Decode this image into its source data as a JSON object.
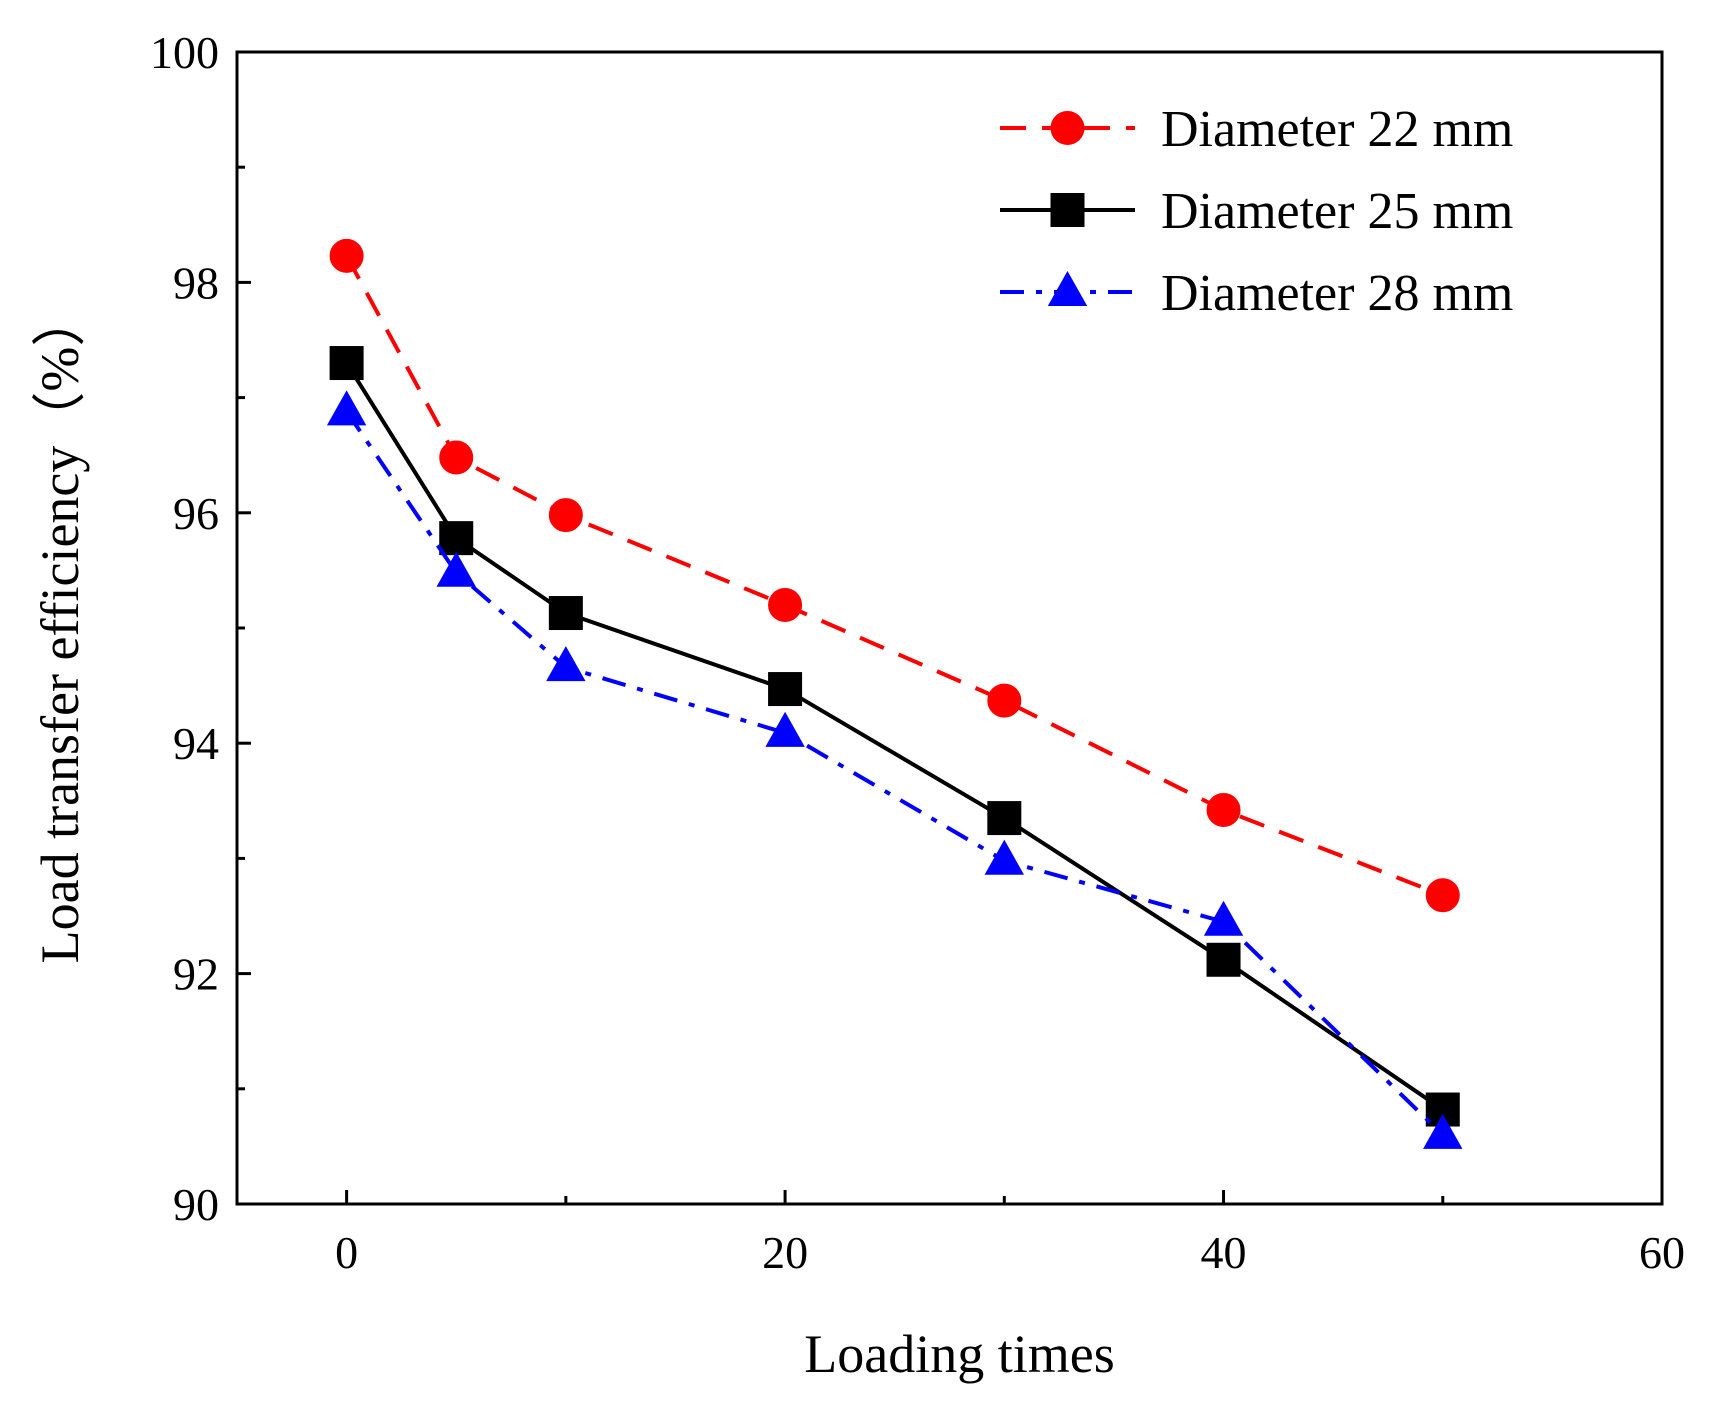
{
  "chart_data": {
    "type": "line",
    "title": "",
    "xlabel": "Loading times",
    "ylabel": "Load transfer efficiency（%）",
    "xlim": [
      -5,
      60
    ],
    "ylim": [
      90,
      100
    ],
    "x_ticks": [
      0,
      20,
      40,
      60
    ],
    "x_tick_labels": [
      "0",
      "20",
      "40",
      "60"
    ],
    "y_ticks": [
      90,
      92,
      94,
      96,
      98,
      100
    ],
    "y_tick_labels": [
      "90",
      "92",
      "94",
      "96",
      "98",
      "100"
    ],
    "grid": false,
    "legend_position": "top-right",
    "x": [
      0,
      5,
      10,
      20,
      30,
      40,
      50
    ],
    "series": [
      {
        "name": "Diameter 22 mm",
        "color": "#ff0000",
        "marker": "circle",
        "line_style": "dashed",
        "values": [
          98.23,
          96.48,
          95.98,
          95.2,
          94.37,
          93.42,
          92.68
        ]
      },
      {
        "name": "Diameter 25 mm",
        "color": "#000000",
        "marker": "square",
        "line_style": "solid",
        "values": [
          97.3,
          95.78,
          95.13,
          94.47,
          93.35,
          92.12,
          90.82
        ]
      },
      {
        "name": "Diameter 28 mm",
        "color": "#0000ff",
        "marker": "triangle",
        "line_style": "dash-dot",
        "values": [
          96.88,
          95.48,
          94.66,
          94.09,
          92.98,
          92.45,
          90.6
        ]
      }
    ]
  }
}
